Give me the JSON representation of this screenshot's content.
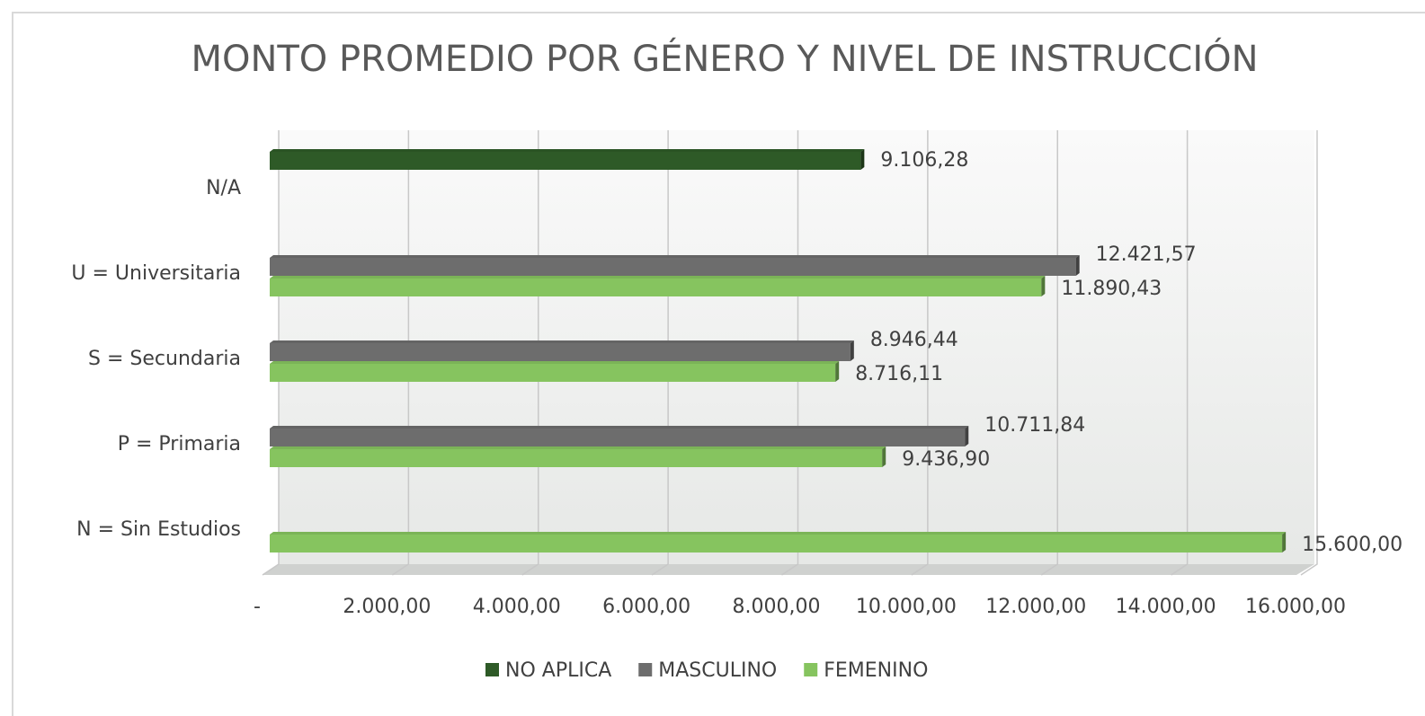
{
  "chart_data": {
    "type": "bar",
    "orientation": "horizontal",
    "title": "MONTO PROMEDIO POR GÉNERO Y NIVEL DE INSTRUCCIÓN",
    "categories": [
      "N = Sin Estudios",
      "P = Primaria",
      "S = Secundaria",
      "U = Universitaria",
      "N/A"
    ],
    "series": [
      {
        "name": "NO APLICA",
        "color": "#2e5a27",
        "values": [
          null,
          null,
          null,
          null,
          9106.28
        ],
        "value_labels": [
          null,
          null,
          null,
          null,
          "9.106,28"
        ]
      },
      {
        "name": "MASCULINO",
        "color": "#6d6d6d",
        "values": [
          null,
          10711.84,
          8946.44,
          12421.57,
          null
        ],
        "value_labels": [
          null,
          "10.711,84",
          "8.946,44",
          "12.421,57",
          null
        ]
      },
      {
        "name": "FEMENINO",
        "color": "#86c45f",
        "values": [
          15600,
          9436.9,
          8716.11,
          11890.43,
          null
        ],
        "value_labels": [
          "15.600,00",
          "9.436,90",
          "8.716,11",
          "11.890,43",
          null
        ]
      }
    ],
    "xlim": [
      0,
      16000
    ],
    "xticks": [
      {
        "value": 0,
        "label": "-"
      },
      {
        "value": 2000,
        "label": "2.000,00"
      },
      {
        "value": 4000,
        "label": "4.000,00"
      },
      {
        "value": 6000,
        "label": "6.000,00"
      },
      {
        "value": 8000,
        "label": "8.000,00"
      },
      {
        "value": 10000,
        "label": "10.000,00"
      },
      {
        "value": 12000,
        "label": "12.000,00"
      },
      {
        "value": 14000,
        "label": "14.000,00"
      },
      {
        "value": 16000,
        "label": "16.000,00"
      }
    ],
    "grid": true,
    "legend": "bottom"
  }
}
